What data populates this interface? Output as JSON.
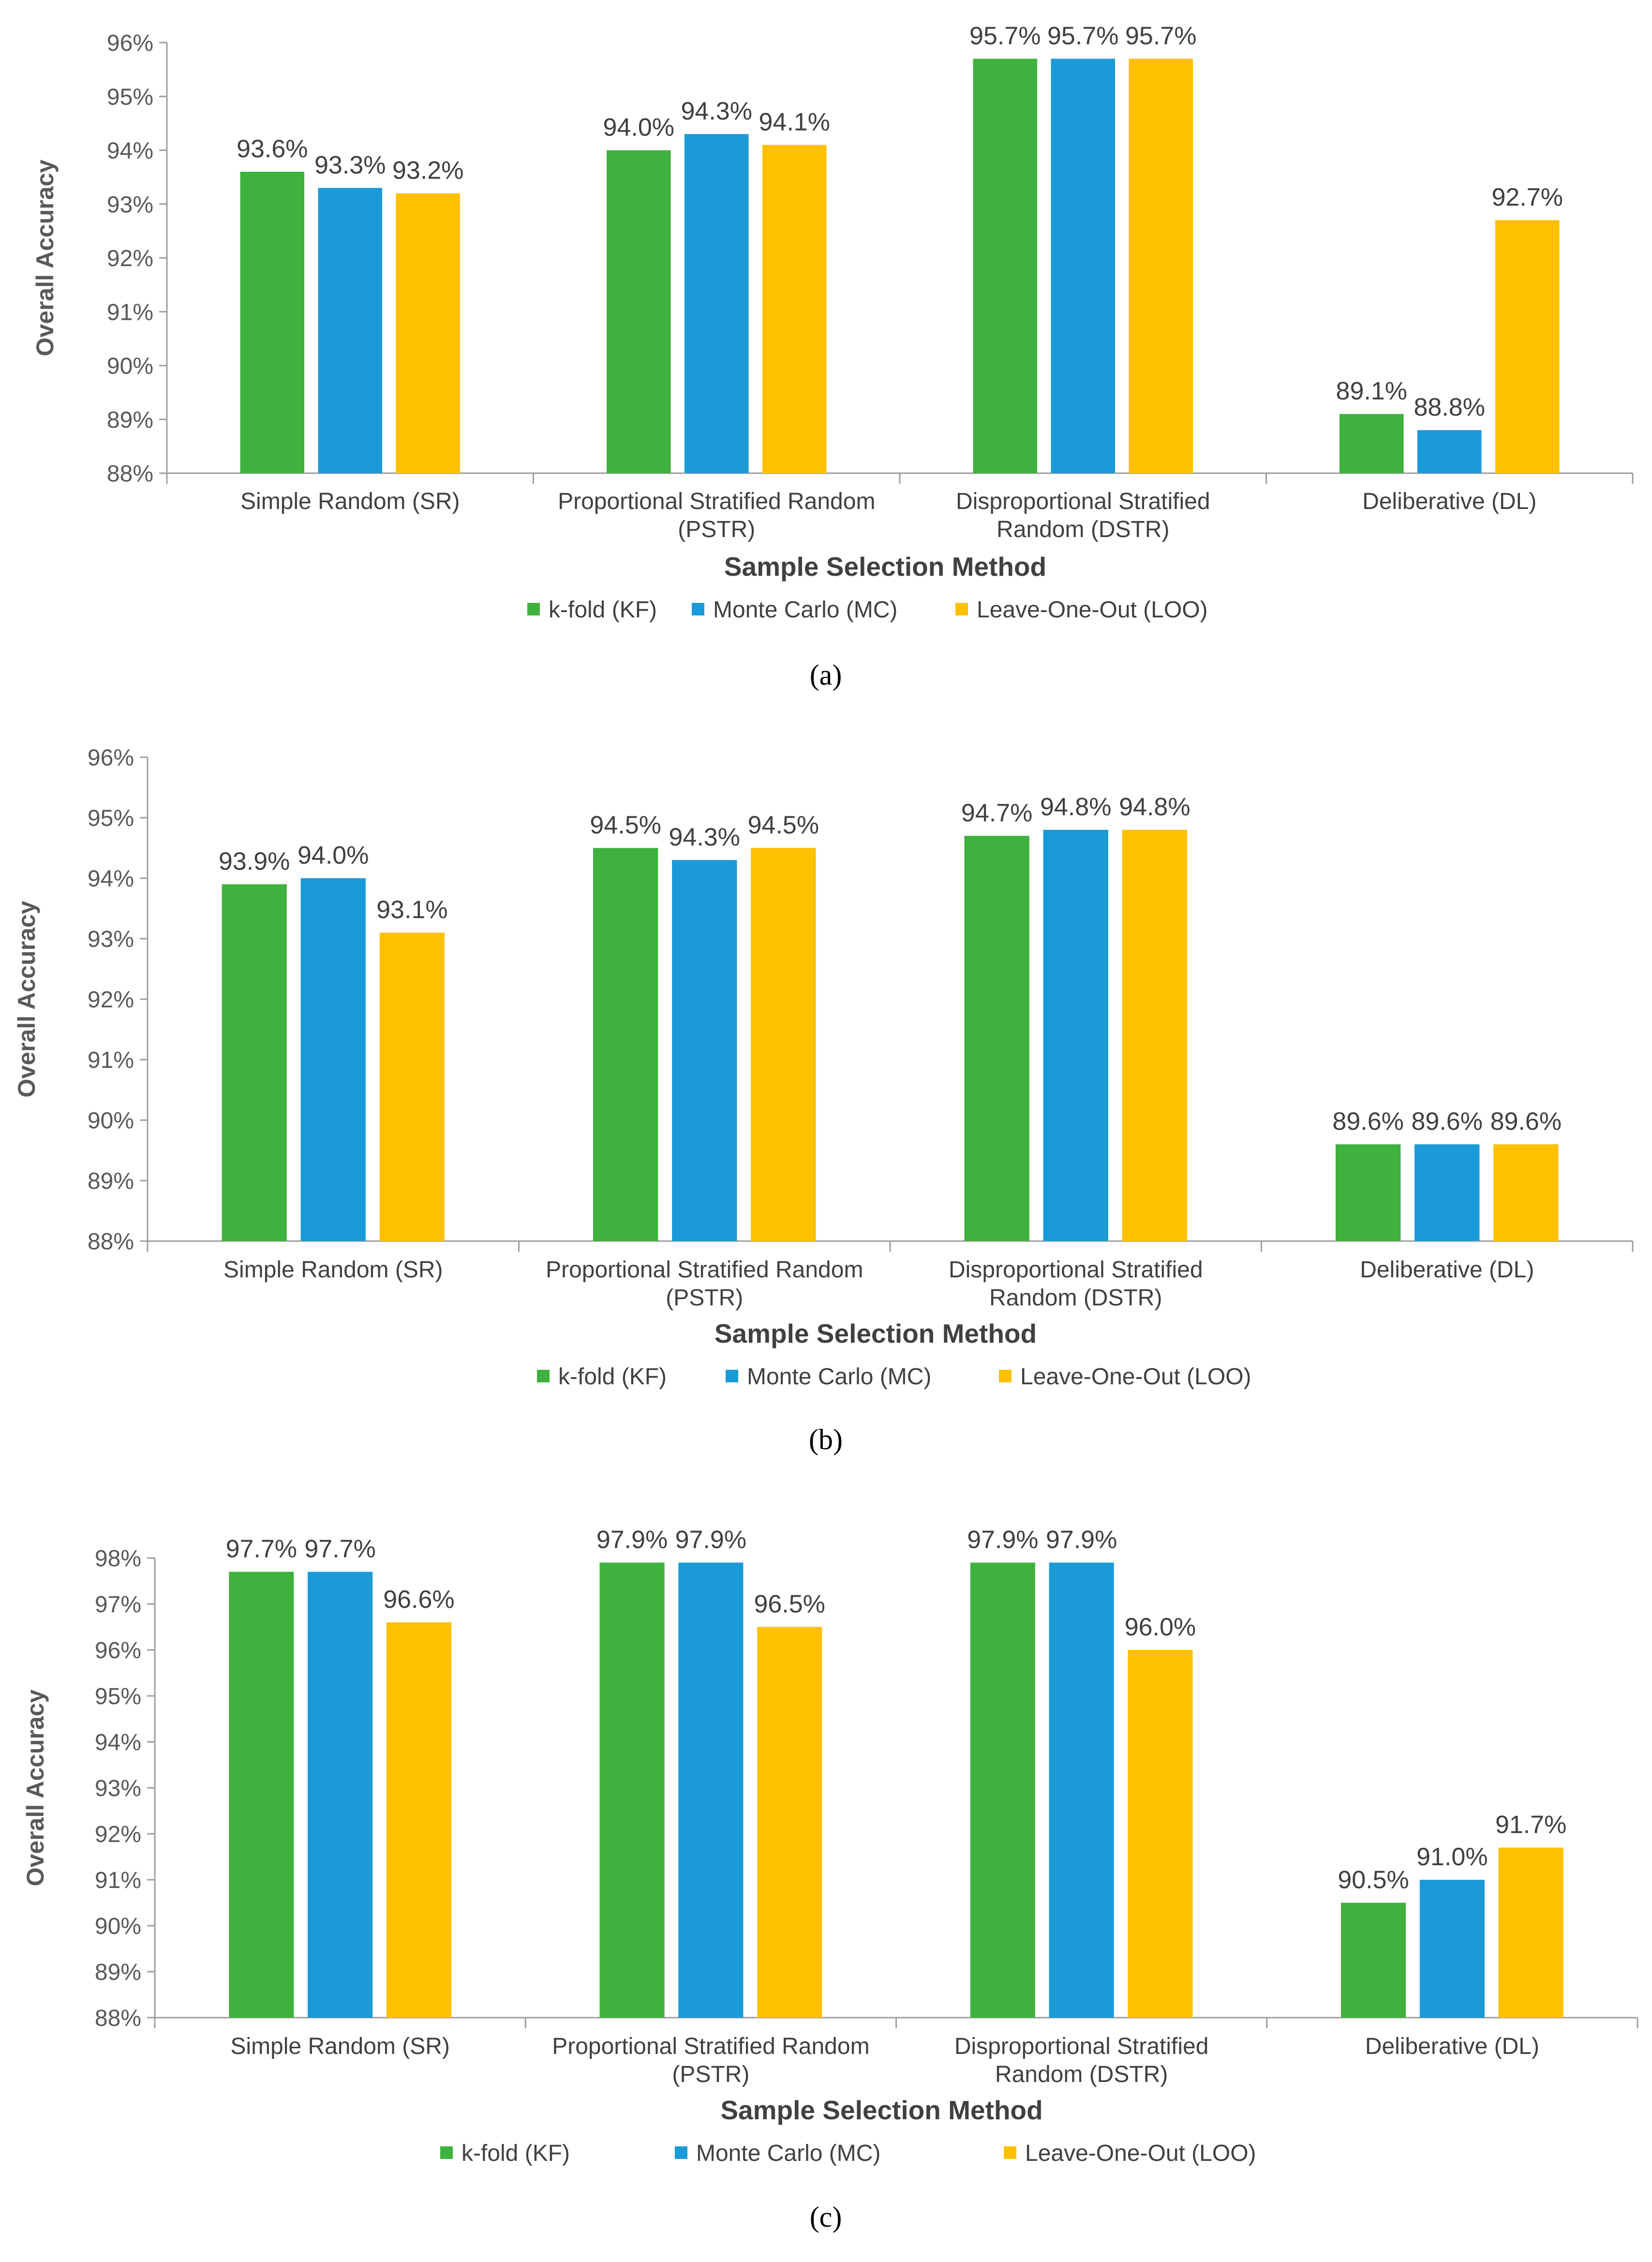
{
  "chart_data": [
    {
      "type": "bar",
      "caption": "(a)",
      "xlabel": "Sample Selection Method",
      "ylabel": "Overall Accuracy",
      "ylim": [
        88,
        96
      ],
      "ytick_step": 1,
      "ytick_labels": [
        "88%",
        "89%",
        "90%",
        "91%",
        "92%",
        "93%",
        "94%",
        "95%",
        "96%"
      ],
      "categories": [
        [
          "Simple Random (SR)"
        ],
        [
          "Proportional Stratified Random",
          "(PSTR)"
        ],
        [
          "Disproportional Stratified",
          "Random (DSTR)"
        ],
        [
          "Deliberative (DL)"
        ]
      ],
      "series": [
        {
          "name": "k-fold (KF)",
          "color": "#3eb13e",
          "values": [
            93.6,
            94.0,
            95.7,
            89.1
          ],
          "labels": [
            "93.6%",
            "94.0%",
            "95.7%",
            "89.1%"
          ]
        },
        {
          "name": "Monte Carlo (MC)",
          "color": "#1a9bd7",
          "values": [
            93.3,
            94.3,
            95.7,
            88.8
          ],
          "labels": [
            "93.3%",
            "94.3%",
            "95.7%",
            "88.8%"
          ]
        },
        {
          "name": "Leave-One-Out (LOO)",
          "color": "#ffc000",
          "values": [
            93.2,
            94.1,
            95.7,
            92.7
          ],
          "labels": [
            "93.2%",
            "94.1%",
            "95.7%",
            "92.7%"
          ]
        }
      ]
    },
    {
      "type": "bar",
      "caption": "(b)",
      "xlabel": "Sample Selection Method",
      "ylabel": "Overall Accuracy",
      "ylim": [
        88,
        96
      ],
      "ytick_step": 1,
      "ytick_labels": [
        "88%",
        "89%",
        "90%",
        "91%",
        "92%",
        "93%",
        "94%",
        "95%",
        "96%"
      ],
      "categories": [
        [
          "Simple Random (SR)"
        ],
        [
          "Proportional Stratified Random",
          "(PSTR)"
        ],
        [
          "Disproportional Stratified",
          "Random (DSTR)"
        ],
        [
          "Deliberative (DL)"
        ]
      ],
      "series": [
        {
          "name": "k-fold (KF)",
          "color": "#3eb13e",
          "values": [
            93.9,
            94.5,
            94.7,
            89.6
          ],
          "labels": [
            "93.9%",
            "94.5%",
            "94.7%",
            "89.6%"
          ]
        },
        {
          "name": "Monte Carlo (MC)",
          "color": "#1a9bd7",
          "values": [
            94.0,
            94.3,
            94.8,
            89.6
          ],
          "labels": [
            "94.0%",
            "94.3%",
            "94.8%",
            "89.6%"
          ]
        },
        {
          "name": "Leave-One-Out (LOO)",
          "color": "#ffc000",
          "values": [
            93.1,
            94.5,
            94.8,
            89.6
          ],
          "labels": [
            "93.1%",
            "94.5%",
            "94.8%",
            "89.6%"
          ]
        }
      ]
    },
    {
      "type": "bar",
      "caption": "(c)",
      "xlabel": "Sample Selection Method",
      "ylabel": "Overall Accuracy",
      "ylim": [
        88,
        98
      ],
      "ytick_step": 1,
      "ytick_labels": [
        "88%",
        "89%",
        "90%",
        "91%",
        "92%",
        "93%",
        "94%",
        "95%",
        "96%",
        "97%",
        "98%"
      ],
      "categories": [
        [
          "Simple Random (SR)"
        ],
        [
          "Proportional Stratified Random",
          "(PSTR)"
        ],
        [
          "Disproportional Stratified",
          "Random (DSTR)"
        ],
        [
          "Deliberative (DL)"
        ]
      ],
      "series": [
        {
          "name": "k-fold (KF)",
          "color": "#3eb13e",
          "values": [
            97.7,
            97.9,
            97.9,
            90.5
          ],
          "labels": [
            "97.7%",
            "97.9%",
            "97.9%",
            "90.5%"
          ]
        },
        {
          "name": "Monte Carlo (MC)",
          "color": "#1a9bd7",
          "values": [
            97.7,
            97.9,
            97.9,
            91.0
          ],
          "labels": [
            "97.7%",
            "97.9%",
            "97.9%",
            "91.0%"
          ]
        },
        {
          "name": "Leave-One-Out (LOO)",
          "color": "#ffc000",
          "values": [
            96.6,
            96.5,
            96.0,
            91.7
          ],
          "labels": [
            "96.6%",
            "96.5%",
            "96.0%",
            "91.7%"
          ]
        }
      ]
    }
  ]
}
